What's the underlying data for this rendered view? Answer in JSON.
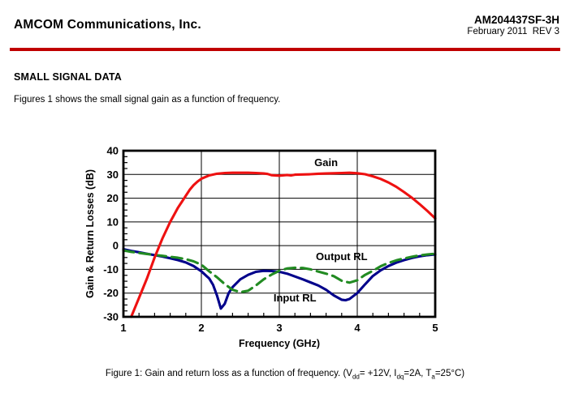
{
  "header": {
    "company": "AMCOM Communications, Inc.",
    "part_number": "AM204437SF-3H",
    "date_rev": "February 2011  REV 3"
  },
  "section": {
    "title": "SMALL SIGNAL DATA",
    "intro": "Figures 1 shows the small signal gain as a function of frequency."
  },
  "colors": {
    "header_rule": "#c00000",
    "gain_curve": "#ee1111",
    "input_rl_curve": "#00008b",
    "output_rl_curve": "#228b22"
  },
  "caption": {
    "segments": [
      {
        "text": "Figure 1: Gain and return loss as a function of frequency. (V"
      },
      {
        "text": "dd",
        "sub": true
      },
      {
        "text": "= +12V, I"
      },
      {
        "text": "dq",
        "sub": true
      },
      {
        "text": "=2A, T"
      },
      {
        "text": "a",
        "sub": true
      },
      {
        "text": "=25°C)"
      }
    ]
  },
  "chart_data": {
    "type": "line",
    "title": "",
    "xlabel": "Frequency (GHz)",
    "ylabel": "Gain & Return Losses (dB)",
    "xlim": [
      1,
      5
    ],
    "ylim": [
      -30,
      40
    ],
    "x_major_ticks": [
      1,
      2,
      3,
      4,
      5
    ],
    "x_minor_step": 0.2,
    "y_major_ticks": [
      40,
      30,
      20,
      10,
      0,
      -10,
      -20,
      -30
    ],
    "y_minor_step": 2.5,
    "grid": true,
    "legend_position": "inline-annotations",
    "series": [
      {
        "name": "Input RL",
        "color": "#00008b",
        "style": "solid",
        "points": [
          [
            1.0,
            -1.5
          ],
          [
            1.1,
            -2.2
          ],
          [
            1.2,
            -2.8
          ],
          [
            1.3,
            -3.4
          ],
          [
            1.4,
            -4.0
          ],
          [
            1.5,
            -4.6
          ],
          [
            1.6,
            -5.3
          ],
          [
            1.7,
            -6.1
          ],
          [
            1.8,
            -7.1
          ],
          [
            1.9,
            -8.6
          ],
          [
            2.0,
            -10.8
          ],
          [
            2.1,
            -13.8
          ],
          [
            2.15,
            -16.5
          ],
          [
            2.2,
            -21.0
          ],
          [
            2.25,
            -26.5
          ],
          [
            2.3,
            -24.5
          ],
          [
            2.35,
            -20.0
          ],
          [
            2.4,
            -17.5
          ],
          [
            2.5,
            -14.2
          ],
          [
            2.6,
            -12.3
          ],
          [
            2.7,
            -11.0
          ],
          [
            2.8,
            -10.6
          ],
          [
            2.9,
            -10.7
          ],
          [
            3.0,
            -11.0
          ],
          [
            3.1,
            -11.8
          ],
          [
            3.2,
            -13.0
          ],
          [
            3.3,
            -14.2
          ],
          [
            3.4,
            -15.5
          ],
          [
            3.5,
            -16.8
          ],
          [
            3.6,
            -18.6
          ],
          [
            3.7,
            -21.0
          ],
          [
            3.8,
            -22.8
          ],
          [
            3.85,
            -23.0
          ],
          [
            3.9,
            -22.5
          ],
          [
            4.0,
            -20.0
          ],
          [
            4.1,
            -16.3
          ],
          [
            4.2,
            -12.8
          ],
          [
            4.3,
            -10.4
          ],
          [
            4.4,
            -8.6
          ],
          [
            4.5,
            -7.2
          ],
          [
            4.6,
            -6.1
          ],
          [
            4.7,
            -5.2
          ],
          [
            4.8,
            -4.5
          ],
          [
            4.9,
            -4.0
          ],
          [
            5.0,
            -3.7
          ]
        ]
      },
      {
        "name": "Output RL",
        "color": "#228b22",
        "style": "dashed",
        "points": [
          [
            1.0,
            -2.0
          ],
          [
            1.1,
            -2.6
          ],
          [
            1.2,
            -3.1
          ],
          [
            1.3,
            -3.5
          ],
          [
            1.4,
            -3.9
          ],
          [
            1.5,
            -4.3
          ],
          [
            1.6,
            -4.7
          ],
          [
            1.7,
            -5.1
          ],
          [
            1.8,
            -5.7
          ],
          [
            1.9,
            -6.6
          ],
          [
            2.0,
            -8.0
          ],
          [
            2.1,
            -10.8
          ],
          [
            2.2,
            -13.3
          ],
          [
            2.3,
            -16.2
          ],
          [
            2.4,
            -18.6
          ],
          [
            2.5,
            -19.6
          ],
          [
            2.6,
            -19.0
          ],
          [
            2.7,
            -16.8
          ],
          [
            2.8,
            -14.2
          ],
          [
            2.9,
            -12.2
          ],
          [
            3.0,
            -10.6
          ],
          [
            3.1,
            -9.6
          ],
          [
            3.2,
            -9.3
          ],
          [
            3.3,
            -9.4
          ],
          [
            3.4,
            -10.0
          ],
          [
            3.5,
            -10.9
          ],
          [
            3.6,
            -11.8
          ],
          [
            3.7,
            -12.9
          ],
          [
            3.8,
            -14.8
          ],
          [
            3.9,
            -15.6
          ],
          [
            4.0,
            -14.6
          ],
          [
            4.1,
            -12.3
          ],
          [
            4.2,
            -10.6
          ],
          [
            4.3,
            -8.7
          ],
          [
            4.4,
            -7.3
          ],
          [
            4.5,
            -6.2
          ],
          [
            4.6,
            -5.4
          ],
          [
            4.7,
            -4.7
          ],
          [
            4.8,
            -4.1
          ],
          [
            4.9,
            -3.7
          ],
          [
            5.0,
            -3.4
          ]
        ]
      },
      {
        "name": "Gain",
        "color": "#ee1111",
        "style": "solid",
        "points": [
          [
            1.1,
            -30.0
          ],
          [
            1.15,
            -26.0
          ],
          [
            1.2,
            -22.0
          ],
          [
            1.25,
            -18.0
          ],
          [
            1.3,
            -14.0
          ],
          [
            1.35,
            -9.5
          ],
          [
            1.4,
            -5.0
          ],
          [
            1.45,
            -1.0
          ],
          [
            1.5,
            3.0
          ],
          [
            1.55,
            6.5
          ],
          [
            1.6,
            10.0
          ],
          [
            1.65,
            13.0
          ],
          [
            1.7,
            16.0
          ],
          [
            1.75,
            18.5
          ],
          [
            1.8,
            21.0
          ],
          [
            1.85,
            23.5
          ],
          [
            1.9,
            25.5
          ],
          [
            1.95,
            27.0
          ],
          [
            2.0,
            28.2
          ],
          [
            2.1,
            29.6
          ],
          [
            2.2,
            30.3
          ],
          [
            2.3,
            30.6
          ],
          [
            2.4,
            30.7
          ],
          [
            2.5,
            30.7
          ],
          [
            2.6,
            30.7
          ],
          [
            2.7,
            30.6
          ],
          [
            2.8,
            30.4
          ],
          [
            2.85,
            30.2
          ],
          [
            2.9,
            29.7
          ],
          [
            3.0,
            29.5
          ],
          [
            3.1,
            29.8
          ],
          [
            3.15,
            29.6
          ],
          [
            3.2,
            29.9
          ],
          [
            3.3,
            30.0
          ],
          [
            3.4,
            30.1
          ],
          [
            3.5,
            30.3
          ],
          [
            3.6,
            30.4
          ],
          [
            3.7,
            30.5
          ],
          [
            3.8,
            30.6
          ],
          [
            3.9,
            30.7
          ],
          [
            4.0,
            30.5
          ],
          [
            4.1,
            30.1
          ],
          [
            4.2,
            29.2
          ],
          [
            4.3,
            28.1
          ],
          [
            4.4,
            26.6
          ],
          [
            4.5,
            24.8
          ],
          [
            4.6,
            22.6
          ],
          [
            4.7,
            20.2
          ],
          [
            4.8,
            17.5
          ],
          [
            4.9,
            14.6
          ],
          [
            5.0,
            11.5
          ]
        ]
      }
    ],
    "annotations": [
      {
        "text": "Gain",
        "x": 3.6,
        "y": 35.0
      },
      {
        "text": "Output RL",
        "x": 3.8,
        "y": -4.6
      },
      {
        "text": "Input RL",
        "x": 3.2,
        "y": -22.0
      }
    ]
  }
}
